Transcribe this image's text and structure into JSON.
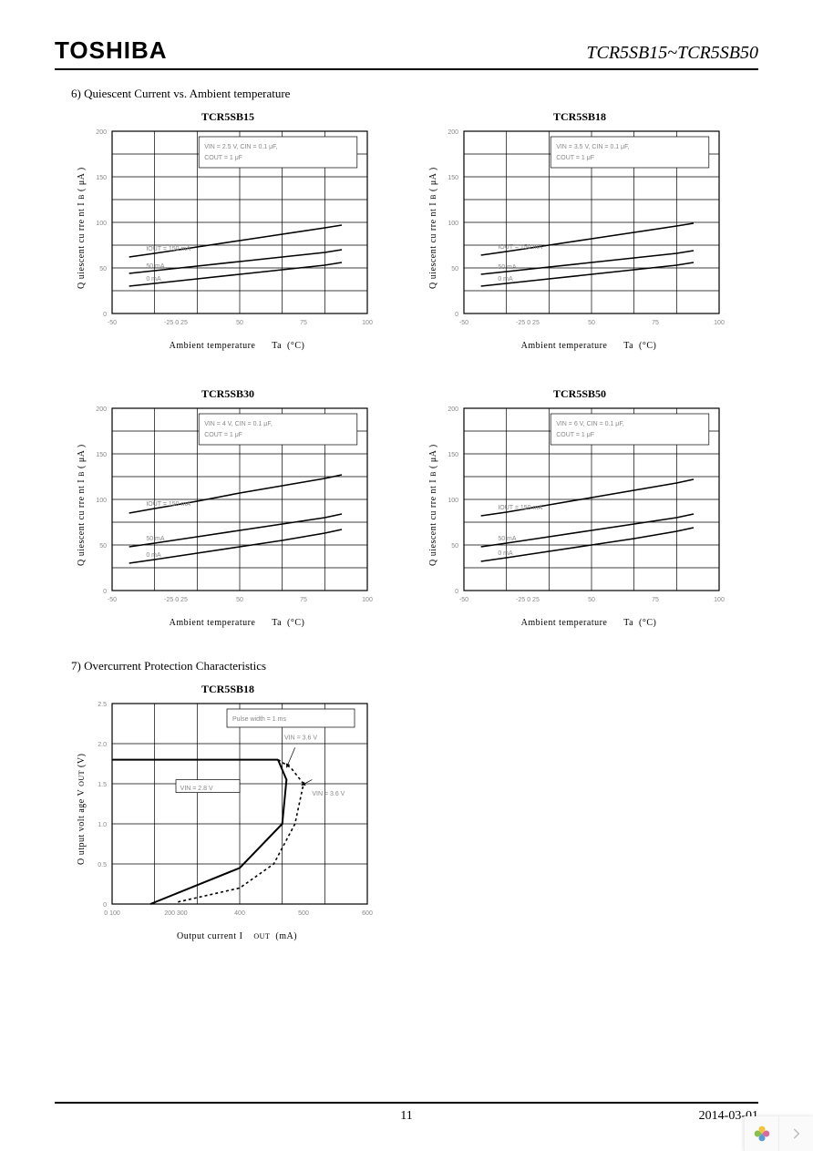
{
  "header": {
    "brand": "TOSHIBA",
    "part_range": "TCR5SB15~TCR5SB50"
  },
  "section6": {
    "label": "6)  Quiescent Current  vs. Ambient temperature",
    "ylabel_main": "Q uiescent    cu rre nt  I",
    "ylabel_sub": "B",
    "ylabel_unit": "( μA )",
    "xlabel_main": "Ambient temperature",
    "xlabel_sub": "Ta",
    "xlabel_unit": "(°C)",
    "x_ticks": [
      "-50",
      "-25 0  25",
      "50",
      "75",
      "100"
    ],
    "y_ticks": [
      "0",
      "50",
      "100",
      "150",
      "200"
    ],
    "line_labels": [
      "IOUT = 150 mA",
      "50 mA",
      "0 mA"
    ],
    "charts": [
      {
        "title": "TCR5SB15",
        "cond": [
          "VIN = 2.5 V, CIN = 0.1 μF,",
          "COUT = 1 μF"
        ],
        "lines": [
          [
            [
              -40,
              62
            ],
            [
              -25,
              66
            ],
            [
              0,
              73
            ],
            [
              25,
              80
            ],
            [
              50,
              87
            ],
            [
              75,
              94
            ],
            [
              85,
              97
            ]
          ],
          [
            [
              -40,
              44
            ],
            [
              -25,
              47
            ],
            [
              0,
              52
            ],
            [
              25,
              57
            ],
            [
              50,
              62
            ],
            [
              75,
              67
            ],
            [
              85,
              70
            ]
          ],
          [
            [
              -40,
              30
            ],
            [
              -25,
              33
            ],
            [
              0,
              38
            ],
            [
              25,
              43
            ],
            [
              50,
              48
            ],
            [
              75,
              53
            ],
            [
              85,
              56
            ]
          ]
        ]
      },
      {
        "title": "TCR5SB18",
        "cond": [
          "VIN = 3.5 V, CIN = 0.1 μF,",
          "COUT = 1 μF"
        ],
        "lines": [
          [
            [
              -40,
              64
            ],
            [
              -25,
              68
            ],
            [
              0,
              75
            ],
            [
              25,
              82
            ],
            [
              50,
              89
            ],
            [
              75,
              96
            ],
            [
              85,
              99
            ]
          ],
          [
            [
              -40,
              43
            ],
            [
              -25,
              46
            ],
            [
              0,
              51
            ],
            [
              25,
              56
            ],
            [
              50,
              61
            ],
            [
              75,
              66
            ],
            [
              85,
              69
            ]
          ],
          [
            [
              -40,
              30
            ],
            [
              -25,
              33
            ],
            [
              0,
              38
            ],
            [
              25,
              43
            ],
            [
              50,
              48
            ],
            [
              75,
              53
            ],
            [
              85,
              56
            ]
          ]
        ]
      },
      {
        "title": "TCR5SB30",
        "cond": [
          "VIN = 4 V, CIN = 0.1 μF,",
          "COUT = 1 μF"
        ],
        "lines": [
          [
            [
              -40,
              85
            ],
            [
              -25,
              90
            ],
            [
              0,
              98
            ],
            [
              25,
              107
            ],
            [
              50,
              115
            ],
            [
              75,
              123
            ],
            [
              85,
              127
            ]
          ],
          [
            [
              -40,
              48
            ],
            [
              -25,
              52
            ],
            [
              0,
              59
            ],
            [
              25,
              66
            ],
            [
              50,
              73
            ],
            [
              75,
              80
            ],
            [
              85,
              84
            ]
          ],
          [
            [
              -40,
              30
            ],
            [
              -25,
              34
            ],
            [
              0,
              41
            ],
            [
              25,
              48
            ],
            [
              50,
              55
            ],
            [
              75,
              63
            ],
            [
              85,
              67
            ]
          ]
        ]
      },
      {
        "title": "TCR5SB50",
        "cond": [
          "VIN = 6 V, CIN = 0.1 μF,",
          "COUT = 1 μF"
        ],
        "lines": [
          [
            [
              -40,
              82
            ],
            [
              -25,
              86
            ],
            [
              0,
              94
            ],
            [
              25,
              102
            ],
            [
              50,
              110
            ],
            [
              75,
              118
            ],
            [
              85,
              122
            ]
          ],
          [
            [
              -40,
              48
            ],
            [
              -25,
              52
            ],
            [
              0,
              59
            ],
            [
              25,
              66
            ],
            [
              50,
              73
            ],
            [
              75,
              80
            ],
            [
              85,
              84
            ]
          ],
          [
            [
              -40,
              32
            ],
            [
              -25,
              36
            ],
            [
              0,
              43
            ],
            [
              25,
              50
            ],
            [
              50,
              57
            ],
            [
              75,
              65
            ],
            [
              85,
              69
            ]
          ]
        ]
      }
    ],
    "xlim": [
      -50,
      100
    ],
    "ylim": [
      0,
      200
    ]
  },
  "section7": {
    "label": "7)  Overcurrent Protection Characteristics",
    "chart": {
      "title": "TCR5SB18",
      "ylabel_main": "O utput volt    age    V",
      "ylabel_sub": "OUT",
      "ylabel_unit": "(V)",
      "xlabel_main": "Output current  I",
      "xlabel_sub": "OUT",
      "xlabel_unit": "(mA)",
      "x_ticks": [
        "0  100",
        "200 300",
        "400",
        "500",
        "600"
      ],
      "y_ticks": [
        "0",
        "0.5",
        "1.0",
        "1.5",
        "2.0",
        "2.5"
      ],
      "xlim": [
        0,
        600
      ],
      "ylim": [
        0,
        2.5
      ],
      "cond": [
        "Pulse width    = 1 ms"
      ],
      "annotations": [
        "VIN = 3.6 V",
        "VIN = 2.8 V",
        "VIN = 3.6 V"
      ],
      "flat_line": [
        [
          0,
          1.8
        ],
        [
          390,
          1.8
        ]
      ],
      "drop_line": [
        [
          390,
          1.8
        ],
        [
          410,
          1.55
        ],
        [
          400,
          1.0
        ],
        [
          300,
          0.45
        ],
        [
          90,
          0.0
        ]
      ],
      "dash_line": [
        [
          390,
          1.8
        ],
        [
          420,
          1.7
        ],
        [
          450,
          1.5
        ],
        [
          430,
          1.0
        ],
        [
          380,
          0.5
        ],
        [
          300,
          0.2
        ],
        [
          150,
          0.02
        ]
      ],
      "arrow1": [
        [
          430,
          1.95
        ],
        [
          410,
          1.7
        ]
      ],
      "arrow2": [
        [
          470,
          1.55
        ],
        [
          445,
          1.48
        ]
      ]
    }
  },
  "footer": {
    "page": "11",
    "date": "2014-03-01"
  }
}
